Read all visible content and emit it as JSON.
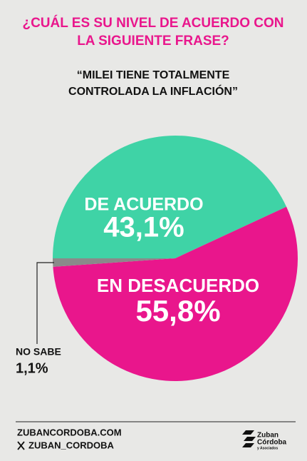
{
  "chart_data": {
    "type": "pie",
    "title": [
      "¿CUÁL ES SU NIVEL DE ACUERDO CON",
      "LA SIGUIENTE FRASE?"
    ],
    "subtitle": [
      "“MILEI TIENE TOTALMENTE",
      "CONTROLADA LA INFLACIÓN”"
    ],
    "categories": [
      "DE ACUERDO",
      "EN DESACUERDO",
      "NO SABE"
    ],
    "values": [
      43.1,
      55.8,
      1.1
    ],
    "value_labels": [
      "43,1%",
      "55,8%",
      "1,1%"
    ],
    "colors": [
      "#3fd3a6",
      "#e9168c",
      "#8a8a8a"
    ]
  },
  "footer": {
    "website": "ZUBANCORDOBA.COM",
    "social": "ZUBAN_CORDOBA"
  },
  "logo": {
    "line1": "Zuban",
    "line2": "Córdoba",
    "line3": "y Asociados"
  }
}
